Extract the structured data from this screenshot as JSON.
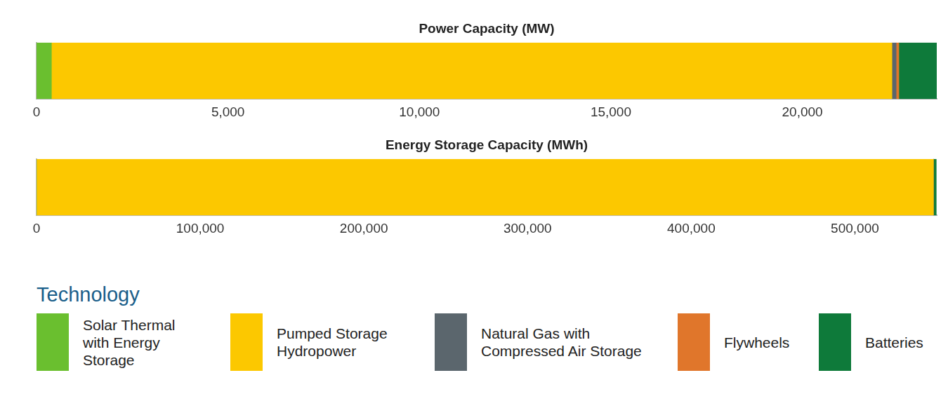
{
  "chart_data": [
    {
      "type": "bar",
      "title": "Power Capacity (MW)",
      "orientation": "horizontal",
      "stacked": true,
      "categories": [
        null
      ],
      "series": [
        {
          "name": "Solar Thermal with Energy Storage",
          "color": "#6abf2f",
          "values": [
            390
          ]
        },
        {
          "name": "Pumped Storage Hydropower",
          "color": "#fcc800",
          "values": [
            21950
          ]
        },
        {
          "name": "Natural Gas with Compressed Air Storage",
          "color": "#5b666d",
          "values": [
            110
          ]
        },
        {
          "name": "Flywheels",
          "color": "#e0762b",
          "values": [
            70
          ]
        },
        {
          "name": "Batteries",
          "color": "#0e7a3a",
          "values": [
            990
          ]
        }
      ],
      "xlim": [
        0,
        23510
      ],
      "xticks": [
        0,
        {
          "value": 5000,
          "label": "5,000"
        },
        {
          "value": 10000,
          "label": "10,000"
        },
        {
          "value": 15000,
          "label": "15,000"
        },
        {
          "value": 20000,
          "label": "20,000"
        }
      ],
      "grid": false
    },
    {
      "type": "bar",
      "title": "Energy Storage Capacity (MWh)",
      "orientation": "horizontal",
      "stacked": true,
      "categories": [
        null
      ],
      "series": [
        {
          "name": "Solar Thermal with Energy Storage",
          "color": "#6abf2f",
          "values": [
            0
          ]
        },
        {
          "name": "Pumped Storage Hydropower",
          "color": "#fcc800",
          "values": [
            548000
          ]
        },
        {
          "name": "Natural Gas with Compressed Air Storage",
          "color": "#5b666d",
          "values": [
            0
          ]
        },
        {
          "name": "Flywheels",
          "color": "#e0762b",
          "values": [
            0
          ]
        },
        {
          "name": "Batteries",
          "color": "#0e7a3a",
          "values": [
            1700
          ]
        }
      ],
      "xlim": [
        0,
        550000
      ],
      "xticks": [
        0,
        {
          "value": 100000,
          "label": "100,000"
        },
        {
          "value": 200000,
          "label": "200,000"
        },
        {
          "value": 300000,
          "label": "300,000"
        },
        {
          "value": 400000,
          "label": "400,000"
        },
        {
          "value": 500000,
          "label": "500,000"
        }
      ],
      "grid": false,
      "legend": "bottom",
      "legend_title": "Technology"
    }
  ]
}
